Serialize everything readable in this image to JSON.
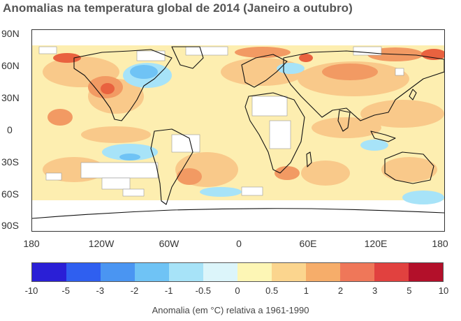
{
  "title": "Anomalias na temperatura global de 2014 (Janeiro a outubro)",
  "y_axis": [
    "90N",
    "60N",
    "30N",
    "0",
    "30S",
    "60S",
    "90S"
  ],
  "x_axis": [
    "180",
    "120W",
    "60W",
    "0",
    "60E",
    "120E",
    "180"
  ],
  "colorbar": {
    "ticks": [
      "-10",
      "-5",
      "-3",
      "-2",
      "-1",
      "-0.5",
      "0",
      "0.5",
      "1",
      "2",
      "3",
      "5",
      "10"
    ],
    "colors": [
      "#2a1fd6",
      "#2f5ff0",
      "#4a95f2",
      "#6fc3f5",
      "#a7e3f8",
      "#dcf5fa",
      "#fdf6b5",
      "#fbd58e",
      "#f6ad6a",
      "#ef7759",
      "#e1413f",
      "#b3102a"
    ],
    "label": "Anomalia (em °C) relativa a 1961-1990"
  }
}
